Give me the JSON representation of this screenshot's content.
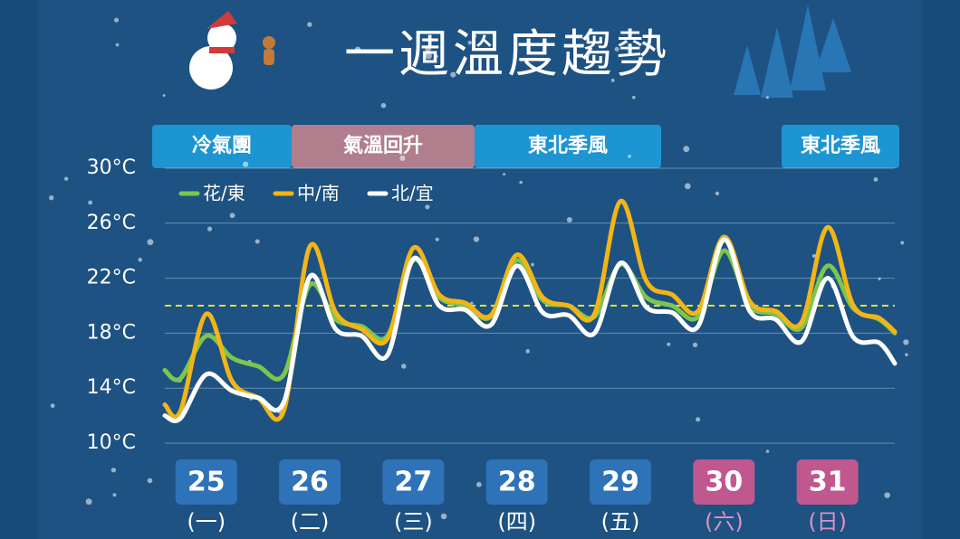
{
  "title": "一週溫度趨勢",
  "periods": [
    "冷氣團",
    "氣溫回升",
    "東北季風",
    "東北季風"
  ],
  "chart_data": {
    "type": "line",
    "x": [
      0.4,
      1,
      2,
      3,
      4,
      5,
      6,
      7,
      8,
      9,
      10,
      11,
      12,
      13,
      14,
      15,
      16,
      17,
      18,
      19,
      20,
      21,
      22,
      23,
      24,
      25,
      26,
      27,
      28,
      28.6
    ],
    "xlim": [
      0.4,
      28.6
    ],
    "ylim": [
      10,
      30
    ],
    "yticks": [
      {
        "value": 10,
        "label": "10°C"
      },
      {
        "value": 14,
        "label": "14°C"
      },
      {
        "value": 18,
        "label": "18°C"
      },
      {
        "value": 22,
        "label": "22°C"
      },
      {
        "value": 26,
        "label": "26°C"
      },
      {
        "value": 30,
        "label": "30°C"
      }
    ],
    "grid": true,
    "reference_line": 20,
    "reference_color": "#e8e030",
    "categories": [
      "25",
      "26",
      "27",
      "28",
      "29",
      "30",
      "31"
    ],
    "category_x": [
      2,
      6,
      10,
      14,
      18,
      22,
      26
    ],
    "weekdays": [
      "(一)",
      "(二)",
      "(三)",
      "(四)",
      "(五)",
      "(六)",
      "(日)"
    ],
    "category_colors": [
      "#2e72b8",
      "#2e72b8",
      "#2e72b8",
      "#2e72b8",
      "#2e72b8",
      "#c0578f",
      "#c0578f"
    ],
    "weekday_colors": [
      "#ffffff",
      "#ffffff",
      "#ffffff",
      "#ffffff",
      "#ffffff",
      "#e090c0",
      "#e090c0"
    ],
    "series": [
      {
        "name": "花/東",
        "color": "#7cc64e",
        "values": [
          15.3,
          14.7,
          17.8,
          16.2,
          15.6,
          15,
          21.5,
          19,
          18.5,
          17.8,
          23.3,
          20.6,
          20,
          19.2,
          23.3,
          20.4,
          20,
          19.2,
          23,
          20.6,
          20,
          19.2,
          24,
          20,
          19.4,
          18.4,
          22.9,
          19.8,
          19,
          18
        ]
      },
      {
        "name": "中/南",
        "color": "#f3b515",
        "values": [
          12.8,
          12.3,
          19.4,
          14.5,
          13.3,
          12.4,
          24.3,
          19.5,
          18.3,
          17.6,
          24.2,
          20.8,
          20.2,
          19.3,
          23.7,
          20.6,
          20,
          19.4,
          27.6,
          21.8,
          20.8,
          19.6,
          25,
          20.3,
          19.6,
          18.8,
          25.7,
          20,
          19.1,
          18.1
        ]
      },
      {
        "name": "北/宜",
        "color": "#ffffff",
        "values": [
          12,
          11.8,
          15,
          13.8,
          13.3,
          13,
          22.1,
          18.3,
          17.8,
          16.4,
          23.4,
          20,
          19.7,
          18.6,
          22.9,
          19.5,
          19.3,
          18,
          23.1,
          19.9,
          19.5,
          18.5,
          24.8,
          19.6,
          19,
          17.4,
          22,
          17.7,
          17.3,
          15.8
        ]
      }
    ]
  }
}
